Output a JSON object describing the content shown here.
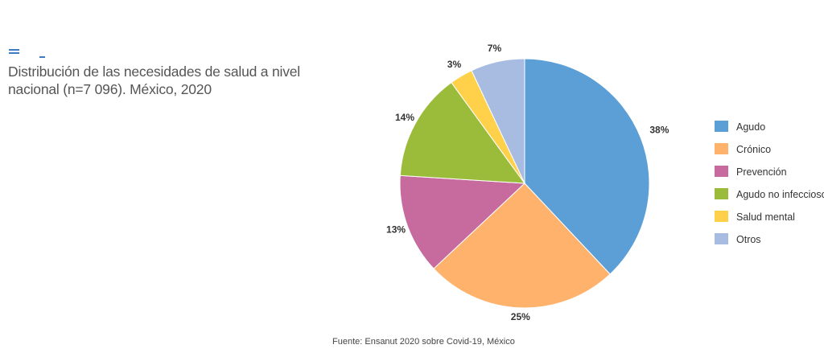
{
  "title": "Distribución de las necesidades de salud a nivel nacional (n=7 096). México, 2020",
  "source": "Fuente: Ensanut 2020 sobre Covid-19, México",
  "chart_data": {
    "type": "pie",
    "categories": [
      "Agudo",
      "Crónico",
      "Prevención",
      "Agudo no infeccioso",
      "Salud mental",
      "Otros"
    ],
    "values": [
      38,
      25,
      13,
      14,
      3,
      7
    ],
    "labels": [
      "38%",
      "25%",
      "13%",
      "14%",
      "3%",
      "7%"
    ],
    "colors": [
      "#5B9FD6",
      "#FFB26B",
      "#C76B9E",
      "#9BBB3B",
      "#FFD04A",
      "#A7BCE0"
    ],
    "legend_position": "right",
    "start": "top, clockwise"
  }
}
